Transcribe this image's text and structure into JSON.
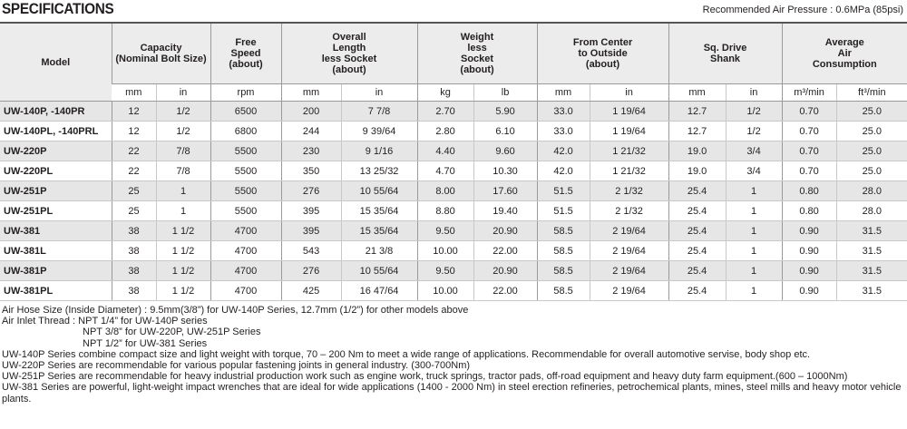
{
  "header": {
    "title": "SPECIFICATIONS",
    "note": "Recommended Air Pressure : 0.6MPa (85psi)"
  },
  "table": {
    "groups": [
      {
        "label": "Model",
        "span": 1
      },
      {
        "label": "Capacity\n(Nominal Bolt Size)",
        "span": 2
      },
      {
        "label": "Free\nSpeed\n(about)",
        "span": 1
      },
      {
        "label": "Overall\nLength\nless Socket\n(about)",
        "span": 2
      },
      {
        "label": "Weight\nless\nSocket\n(about)",
        "span": 2
      },
      {
        "label": "From Center\nto Outside\n(about)",
        "span": 2
      },
      {
        "label": "Sq. Drive\nShank",
        "span": 2
      },
      {
        "label": "Average\nAir\nConsumption",
        "span": 2
      }
    ],
    "units": [
      "mm",
      "in",
      "rpm",
      "mm",
      "in",
      "kg",
      "lb",
      "mm",
      "in",
      "mm",
      "in",
      "m³/min",
      "ft³/min"
    ],
    "rows": [
      [
        "UW-140P, -140PR",
        "12",
        "1/2",
        "6500",
        "200",
        "7 7/8",
        "2.70",
        "5.90",
        "33.0",
        "1 19/64",
        "12.7",
        "1/2",
        "0.70",
        "25.0"
      ],
      [
        "UW-140PL, -140PRL",
        "12",
        "1/2",
        "6800",
        "244",
        "9 39/64",
        "2.80",
        "6.10",
        "33.0",
        "1 19/64",
        "12.7",
        "1/2",
        "0.70",
        "25.0"
      ],
      [
        "UW-220P",
        "22",
        "7/8",
        "5500",
        "230",
        "9 1/16",
        "4.40",
        "9.60",
        "42.0",
        "1 21/32",
        "19.0",
        "3/4",
        "0.70",
        "25.0"
      ],
      [
        "UW-220PL",
        "22",
        "7/8",
        "5500",
        "350",
        "13 25/32",
        "4.70",
        "10.30",
        "42.0",
        "1 21/32",
        "19.0",
        "3/4",
        "0.70",
        "25.0"
      ],
      [
        "UW-251P",
        "25",
        "1",
        "5500",
        "276",
        "10 55/64",
        "8.00",
        "17.60",
        "51.5",
        "2 1/32",
        "25.4",
        "1",
        "0.80",
        "28.0"
      ],
      [
        "UW-251PL",
        "25",
        "1",
        "5500",
        "395",
        "15 35/64",
        "8.80",
        "19.40",
        "51.5",
        "2 1/32",
        "25.4",
        "1",
        "0.80",
        "28.0"
      ],
      [
        "UW-381",
        "38",
        "1 1/2",
        "4700",
        "395",
        "15 35/64",
        "9.50",
        "20.90",
        "58.5",
        "2 19/64",
        "25.4",
        "1",
        "0.90",
        "31.5"
      ],
      [
        "UW-381L",
        "38",
        "1 1/2",
        "4700",
        "543",
        "21 3/8",
        "10.00",
        "22.00",
        "58.5",
        "2 19/64",
        "25.4",
        "1",
        "0.90",
        "31.5"
      ],
      [
        "UW-381P",
        "38",
        "1 1/2",
        "4700",
        "276",
        "10 55/64",
        "9.50",
        "20.90",
        "58.5",
        "2 19/64",
        "25.4",
        "1",
        "0.90",
        "31.5"
      ],
      [
        "UW-381PL",
        "38",
        "1 1/2",
        "4700",
        "425",
        "16 47/64",
        "10.00",
        "22.00",
        "58.5",
        "2 19/64",
        "25.4",
        "1",
        "0.90",
        "31.5"
      ]
    ]
  },
  "notes": [
    "Air Hose Size (Inside Diameter) : 9.5mm(3/8”) for UW-140P Series, 12.7mm (1/2”) for other models above",
    "Air Inlet Thread : NPT 1/4” for UW-140P series",
    "NPT 3/8” for UW-220P, UW-251P Series",
    "NPT 1/2” for UW-381 Series",
    "UW-140P Series combine compact size and light weight with torque, 70 – 200 Nm to meet a wide range of applications. Recommendable for overall automotive servise, body shop etc.",
    "UW-220P Series are recommendable for various popular fastening joints in general industry. (300-700Nm)",
    "UW-251P Series are recommendable for heavy industrial production work such as engine work, truck springs, tractor pads, off-road equipment and heavy duty farm equipment.(600 – 1000Nm)",
    "UW-381   Series are powerful, light-weight impact wrenches that are ideal for wide applications (1400 - 2000 Nm) in steel erection refineries, petrochemical plants, mines, steel mills and heavy motor vehicle plants."
  ]
}
